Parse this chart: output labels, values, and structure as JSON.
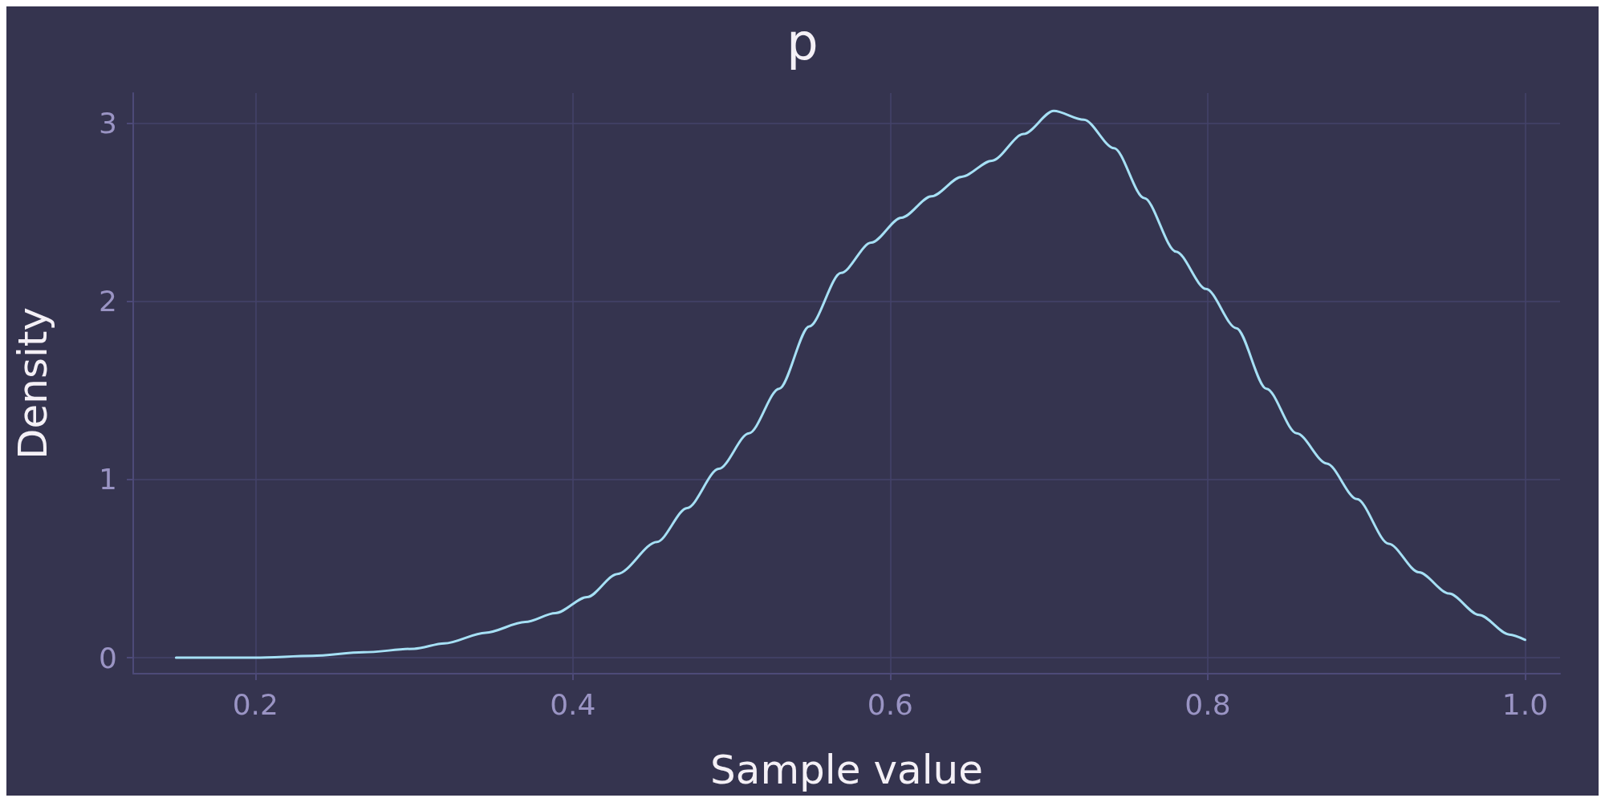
{
  "chart_data": {
    "type": "line",
    "title": "p",
    "xlabel": "Sample value",
    "ylabel": "Density",
    "xlim": [
      0.123,
      1.022
    ],
    "ylim": [
      -0.09,
      3.17
    ],
    "xticks": [
      {
        "value": 0.2,
        "label": "0.2"
      },
      {
        "value": 0.4,
        "label": "0.4"
      },
      {
        "value": 0.6,
        "label": "0.6"
      },
      {
        "value": 0.8,
        "label": "0.8"
      },
      {
        "value": 1.0,
        "label": "1.0"
      }
    ],
    "yticks": [
      0,
      1,
      2,
      3
    ],
    "grid": true,
    "marker": "none",
    "line_style": "solid",
    "series": [
      {
        "color": "#a6e0f5",
        "x": [
          0.15,
          0.2,
          0.236,
          0.268,
          0.3,
          0.319,
          0.345,
          0.37,
          0.389,
          0.409,
          0.428,
          0.453,
          0.472,
          0.492,
          0.511,
          0.53,
          0.549,
          0.569,
          0.588,
          0.607,
          0.626,
          0.645,
          0.664,
          0.684,
          0.703,
          0.722,
          0.741,
          0.76,
          0.78,
          0.799,
          0.818,
          0.837,
          0.856,
          0.875,
          0.894,
          0.914,
          0.933,
          0.952,
          0.971,
          0.99,
          1.0
        ],
        "values": [
          0,
          0,
          0.01,
          0.03,
          0.05,
          0.08,
          0.14,
          0.2,
          0.25,
          0.34,
          0.47,
          0.65,
          0.84,
          1.06,
          1.26,
          1.51,
          1.86,
          2.16,
          2.33,
          2.47,
          2.59,
          2.7,
          2.79,
          2.94,
          3.07,
          3.02,
          2.86,
          2.58,
          2.28,
          2.07,
          1.85,
          1.51,
          1.26,
          1.09,
          0.89,
          0.64,
          0.48,
          0.36,
          0.24,
          0.13,
          0.1
        ]
      }
    ]
  }
}
